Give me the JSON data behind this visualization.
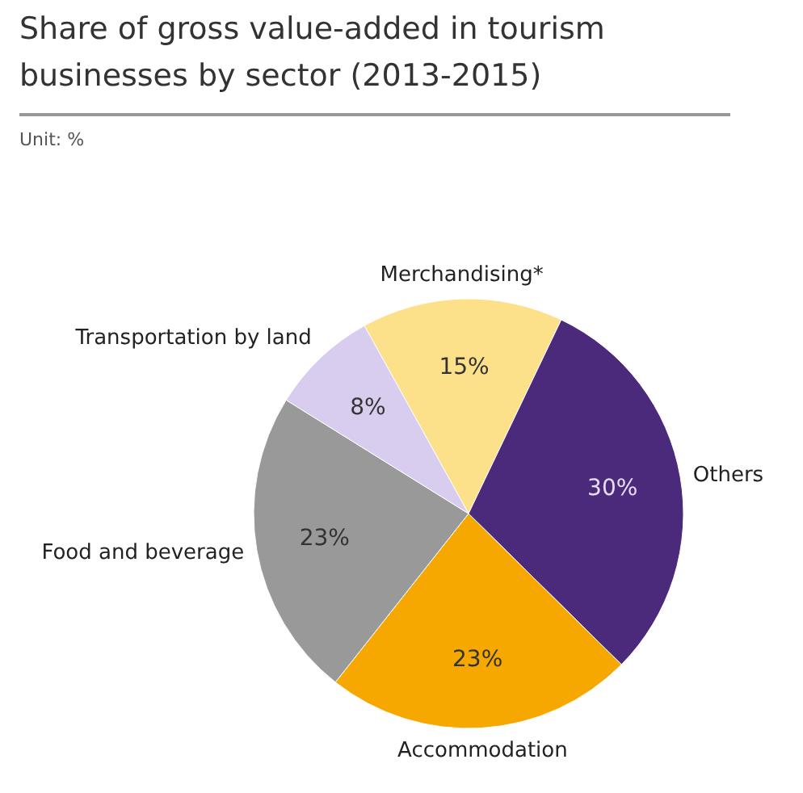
{
  "chart_data": {
    "type": "pie",
    "title": "Share of gross value-added in tourism businesses by sector (2013-2015)",
    "subtitle": "Unit: %",
    "categories": [
      "Merchandising*",
      "Others",
      "Accommodation",
      "Food and beverage",
      "Transportation by land"
    ],
    "values": [
      15,
      30,
      23,
      23,
      8
    ],
    "value_labels": [
      "15%",
      "30%",
      "23%",
      "23%",
      "8%"
    ],
    "colors": [
      "#fde08a",
      "#4b2a7b",
      "#f7a800",
      "#999999",
      "#d8cdee"
    ]
  }
}
